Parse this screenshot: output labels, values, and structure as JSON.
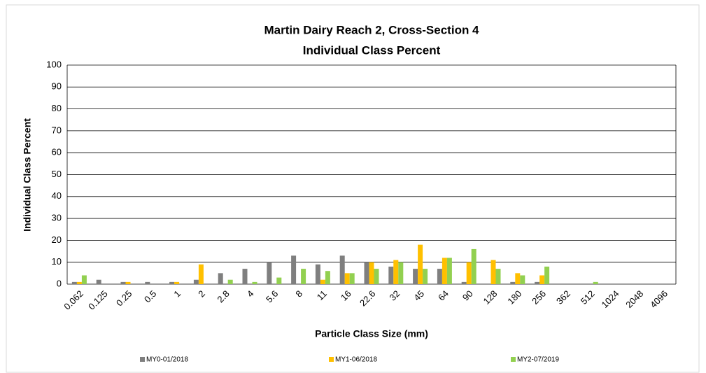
{
  "chart_data": {
    "type": "bar",
    "title": "Martin Dairy Reach 2, Cross-Section 4",
    "subtitle": "Individual Class Percent",
    "x_label": "Particle Class Size (mm)",
    "y_label": "Individual Class Percent",
    "categories": [
      "0.062",
      "0.125",
      "0.25",
      "0.5",
      "1",
      "2",
      "2.8",
      "4",
      "5.6",
      "8",
      "11",
      "16",
      "22.6",
      "32",
      "45",
      "64",
      "90",
      "128",
      "180",
      "256",
      "362",
      "512",
      "1024",
      "2048",
      "4096"
    ],
    "series": [
      {
        "name": "MY0-01/2018",
        "color": "#7f7f7f",
        "values": [
          1,
          2,
          1,
          1,
          1,
          2,
          5,
          7,
          10,
          13,
          9,
          13,
          10,
          8,
          7,
          7,
          1,
          0,
          1,
          1,
          0,
          0,
          0,
          0,
          0
        ]
      },
      {
        "name": "MY1-06/2018",
        "color": "#ffc000",
        "values": [
          1,
          0,
          1,
          0,
          1,
          9,
          0,
          0,
          0,
          0,
          2,
          5,
          10,
          11,
          18,
          12,
          10,
          11,
          5,
          4,
          0,
          0,
          0,
          0,
          0
        ]
      },
      {
        "name": "MY2-07/2019",
        "color": "#92d050",
        "values": [
          4,
          0,
          0,
          0,
          0,
          0,
          2,
          1,
          3,
          7,
          6,
          5,
          7,
          10,
          7,
          12,
          16,
          7,
          4,
          8,
          0,
          1,
          0,
          0,
          0
        ]
      }
    ],
    "ylim": [
      0,
      100
    ],
    "yticks": [
      0,
      10,
      20,
      30,
      40,
      50,
      60,
      70,
      80,
      90,
      100
    ],
    "grid": true,
    "legend": "bottom"
  }
}
